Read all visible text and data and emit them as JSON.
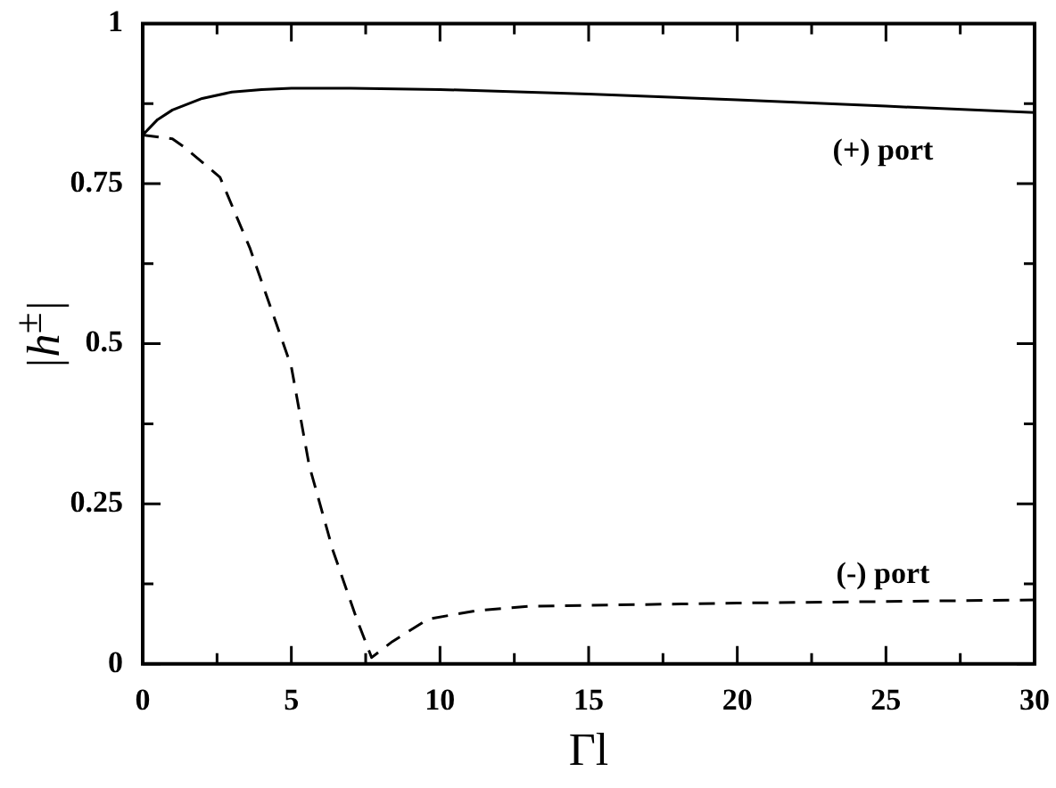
{
  "chart_data": {
    "type": "line",
    "xlabel": "Γl",
    "ylabel": "|h$^{±}$|",
    "marker": "none",
    "xlim": [
      0,
      30
    ],
    "ylim": [
      0,
      1
    ],
    "xticks": [
      0,
      {
        "value": 2.5,
        "label": null
      },
      5,
      {
        "value": 7.5,
        "label": null
      },
      10,
      {
        "value": 12.5,
        "label": null
      },
      15,
      {
        "value": 17.5,
        "label": null
      },
      20,
      {
        "value": 22.5,
        "label": null
      },
      25,
      {
        "value": 27.5,
        "label": null
      },
      30
    ],
    "yticks": [
      0,
      {
        "value": 0.125,
        "label": null
      },
      0.25,
      {
        "value": 0.375,
        "label": null
      },
      0.5,
      {
        "value": 0.625,
        "label": null
      },
      0.75,
      {
        "value": 0.875,
        "label": null
      },
      1
    ],
    "series": [
      {
        "color": "#000000",
        "line_style": "solid",
        "x": [
          0,
          0.5,
          1,
          2,
          3,
          4,
          5,
          7,
          10,
          15,
          20,
          25,
          30
        ],
        "values": [
          0.826,
          0.85,
          0.865,
          0.883,
          0.893,
          0.897,
          0.899,
          0.899,
          0.897,
          0.89,
          0.881,
          0.871,
          0.861
        ]
      },
      {
        "color": "#000000",
        "line_style": "dashed",
        "x": [
          0,
          1,
          1.4,
          2.6,
          3.6,
          4.4,
          5,
          5.6,
          6.4,
          7.2,
          7.7,
          8.4,
          9.6,
          11.2,
          13,
          20,
          30
        ],
        "values": [
          0.826,
          0.82,
          0.807,
          0.76,
          0.65,
          0.544,
          0.464,
          0.31,
          0.177,
          0.07,
          0.01,
          0.035,
          0.07,
          0.083,
          0.09,
          0.095,
          0.1
        ]
      }
    ],
    "annotations": [
      "(+) port",
      "(-) port"
    ]
  }
}
